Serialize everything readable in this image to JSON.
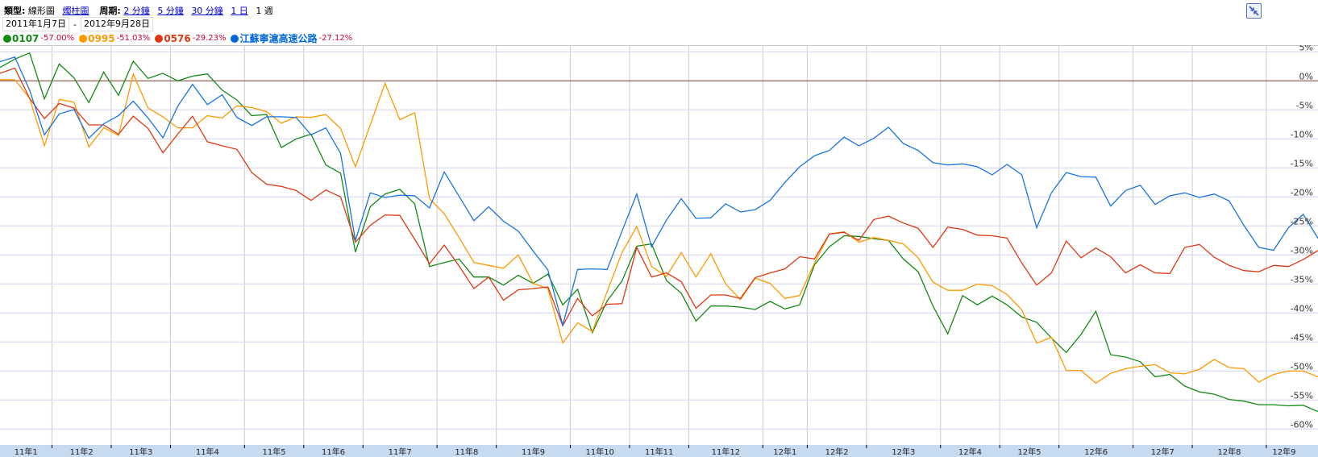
{
  "header": {
    "type_label": "類型:",
    "type_current": "線形圖",
    "type_link": "燭柱圖",
    "period_label": "周期:",
    "period_links": [
      "2 分鐘",
      "5 分鐘",
      "30 分鐘",
      "1 日"
    ],
    "period_current": "1 週",
    "date_from": "2011年1月7日",
    "date_sep": "-",
    "date_to": "2012年9月28日"
  },
  "legend": [
    {
      "name": "0107",
      "change": "-57.00%",
      "color": "#138a13"
    },
    {
      "name": "0995",
      "change": "-51.03%",
      "color": "#ff9900"
    },
    {
      "name": "0576",
      "change": "-29.23%",
      "color": "#dc3912"
    },
    {
      "name": "江蘇寧滬高速公路",
      "change": "-27.12%",
      "color": "#0066dd"
    }
  ],
  "collapse_icon": "collapse-arrows-icon",
  "chart_data": {
    "type": "line",
    "ylim": [
      -62,
      6
    ],
    "y_ticks": [
      "5%",
      "0%",
      "-5%",
      "-10%",
      "-15%",
      "-20%",
      "-25%",
      "-30%",
      "-35%",
      "-40%",
      "-45%",
      "-50%",
      "-55%",
      "-60%"
    ],
    "y_tick_values": [
      5,
      0,
      -5,
      -10,
      -15,
      -20,
      -25,
      -30,
      -35,
      -40,
      -45,
      -50,
      -55,
      -60
    ],
    "x_ticks": [
      "11年1",
      "11年2",
      "11年3",
      "11年4",
      "11年5",
      "11年6",
      "11年7",
      "11年8",
      "11年9",
      "11年10",
      "11年11",
      "11年12",
      "12年1",
      "12年2",
      "12年3",
      "12年4",
      "12年5",
      "12年6",
      "12年7",
      "12年8",
      "12年9"
    ],
    "grid": true,
    "zero_line_color": "#7a3b2e",
    "x": [
      "2011-01-07",
      "2011-01-14",
      "2011-01-21",
      "2011-01-28",
      "2011-02-04",
      "2011-02-11",
      "2011-02-18",
      "2011-02-25",
      "2011-03-04",
      "2011-03-11",
      "2011-03-18",
      "2011-03-25",
      "2011-04-01",
      "2011-04-08",
      "2011-04-15",
      "2011-04-22",
      "2011-04-29",
      "2011-05-06",
      "2011-05-13",
      "2011-05-20",
      "2011-05-27",
      "2011-06-03",
      "2011-06-10",
      "2011-06-17",
      "2011-06-24",
      "2011-07-01",
      "2011-07-08",
      "2011-07-15",
      "2011-07-22",
      "2011-07-29",
      "2011-08-05",
      "2011-08-12",
      "2011-08-19",
      "2011-08-26",
      "2011-09-02",
      "2011-09-09",
      "2011-09-16",
      "2011-09-23",
      "2011-09-30",
      "2011-10-07",
      "2011-10-14",
      "2011-10-21",
      "2011-10-28",
      "2011-11-04",
      "2011-11-11",
      "2011-11-18",
      "2011-11-25",
      "2011-12-02",
      "2011-12-09",
      "2011-12-16",
      "2011-12-23",
      "2011-12-30",
      "2012-01-06",
      "2012-01-13",
      "2012-01-20",
      "2012-02-03",
      "2012-02-10",
      "2012-02-17",
      "2012-02-24",
      "2012-03-02",
      "2012-03-09",
      "2012-03-16",
      "2012-03-23",
      "2012-03-30",
      "2012-04-06",
      "2012-04-13",
      "2012-04-20",
      "2012-04-27",
      "2012-05-04",
      "2012-05-11",
      "2012-05-18",
      "2012-05-25",
      "2012-06-01",
      "2012-06-08",
      "2012-06-15",
      "2012-06-22",
      "2012-06-29",
      "2012-07-06",
      "2012-07-13",
      "2012-07-20",
      "2012-07-27",
      "2012-08-03",
      "2012-08-10",
      "2012-08-17",
      "2012-08-24",
      "2012-08-31",
      "2012-09-07",
      "2012-09-14",
      "2012-09-21",
      "2012-09-28"
    ],
    "series": [
      {
        "name": "0107",
        "color": "#138a13",
        "values": [
          2.3,
          3.75,
          4.8,
          -3.1,
          2.9,
          0.5,
          -3.75,
          1.5,
          -2.5,
          3.4,
          0.4,
          1.3,
          0,
          0.8,
          1.2,
          -1.6,
          -3.3,
          -6.0,
          -5.8,
          -11.5,
          -10.0,
          -9.2,
          -14.5,
          -15.9,
          -29.5,
          -21.7,
          -19.5,
          -18.7,
          -21.2,
          -32.0,
          -31.3,
          -30.7,
          -33.8,
          -33.8,
          -35.2,
          -33.5,
          -34.9,
          -33.3,
          -38.6,
          -35.9,
          -43.4,
          -37.9,
          -34.5,
          -28.5,
          -28.1,
          -34.4,
          -36.6,
          -41.4,
          -38.8,
          -38.8,
          -39.0,
          -39.4,
          -38.0,
          -39.3,
          -38.6,
          -31.7,
          -28.6,
          -26.7,
          -26.8,
          -27.2,
          -27.5,
          -30.7,
          -32.9,
          -38.8,
          -43.6,
          -37.0,
          -38.6,
          -37.1,
          -38.6,
          -40.7,
          -41.6,
          -44.3,
          -46.8,
          -43.7,
          -39.7,
          -47.2,
          -47.6,
          -48.4,
          -51.0,
          -50.6,
          -52.6,
          -53.6,
          -54.0,
          -54.9,
          -55.2,
          -55.8,
          -55.8,
          -56.0,
          -55.9,
          -57.0
        ]
      },
      {
        "name": "0995",
        "color": "#ff9900",
        "values": [
          0.2,
          0.2,
          -3.0,
          -11.2,
          -3.2,
          -3.7,
          -11.4,
          -8.1,
          -9.4,
          1.2,
          -4.7,
          -6.2,
          -8.1,
          -8.1,
          -6.0,
          -6.4,
          -4.3,
          -4.6,
          -5.3,
          -7.3,
          -6.2,
          -6.3,
          -5.8,
          -8.2,
          -14.8,
          -7.6,
          -0.4,
          -6.7,
          -5.5,
          -20.3,
          -22.9,
          -27.0,
          -31.3,
          -31.8,
          -32.3,
          -30.0,
          -34.9,
          -35.8,
          -45.2,
          -41.7,
          -43.2,
          -36.3,
          -29.6,
          -25.1,
          -32.0,
          -33.7,
          -29.6,
          -33.8,
          -29.8,
          -35.0,
          -37.7,
          -34.0,
          -34.9,
          -37.5,
          -37.0,
          -31.4,
          -26.4,
          -26.0,
          -27.8,
          -27.0,
          -27.5,
          -28.1,
          -30.5,
          -34.7,
          -36.1,
          -36.1,
          -35.0,
          -35.3,
          -36.8,
          -39.5,
          -45.2,
          -44.2,
          -49.9,
          -49.9,
          -52.1,
          -50.4,
          -49.6,
          -49.2,
          -48.9,
          -50.3,
          -50.5,
          -49.7,
          -48.0,
          -49.4,
          -49.6,
          -51.9,
          -50.6,
          -50.0,
          -50.0,
          -51.03
        ]
      },
      {
        "name": "0576",
        "color": "#dc3912",
        "values": [
          1.3,
          2.2,
          -3.0,
          -6.5,
          -3.9,
          -4.7,
          -7.6,
          -7.6,
          -9.2,
          -6.1,
          -8.2,
          -12.4,
          -9.2,
          -6.1,
          -10.5,
          -11.2,
          -11.8,
          -15.8,
          -17.8,
          -18.2,
          -18.9,
          -20.6,
          -18.8,
          -20.0,
          -27.8,
          -24.9,
          -23.1,
          -23.2,
          -27.3,
          -31.5,
          -28.3,
          -31.9,
          -35.8,
          -33.8,
          -37.8,
          -36.0,
          -35.8,
          -35.5,
          -42.2,
          -37.5,
          -40.5,
          -38.5,
          -38.4,
          -28.7,
          -33.8,
          -33.1,
          -34.6,
          -39.2,
          -36.9,
          -36.9,
          -37.5,
          -33.9,
          -33.1,
          -32.4,
          -30.3,
          -30.7,
          -26.4,
          -26.1,
          -27.5,
          -23.9,
          -23.3,
          -24.5,
          -25.4,
          -28.7,
          -25.2,
          -25.6,
          -26.6,
          -26.7,
          -27.1,
          -31.4,
          -35.2,
          -33.1,
          -27.6,
          -30.5,
          -28.8,
          -30.3,
          -33.1,
          -31.7,
          -33.1,
          -33.2,
          -28.7,
          -28.2,
          -30.4,
          -31.8,
          -32.7,
          -32.9,
          -31.8,
          -32.0,
          -30.8,
          -29.23
        ]
      },
      {
        "name": "江蘇寧滬高速公路",
        "color": "#1a73e0",
        "values": [
          3.3,
          4.1,
          -1.6,
          -9.3,
          -5.7,
          -4.95,
          -9.9,
          -7.4,
          -6.0,
          -3.5,
          -6.4,
          -9.8,
          -4.4,
          -0.6,
          -4.1,
          -2.4,
          -6.3,
          -7.7,
          -6.2,
          -6.2,
          -6.3,
          -9.3,
          -8.1,
          -12.5,
          -27.5,
          -19.3,
          -20.1,
          -19.7,
          -19.8,
          -21.9,
          -15.7,
          -19.9,
          -24.1,
          -21.7,
          -24.2,
          -25.9,
          -29.3,
          -32.6,
          -42.1,
          -32.5,
          -32.4,
          -32.5,
          -25.9,
          -19.5,
          -28.6,
          -24.0,
          -20.3,
          -23.7,
          -23.6,
          -21.2,
          -22.6,
          -22.2,
          -20.6,
          -17.5,
          -14.8,
          -12.9,
          -12.0,
          -9.7,
          -11.2,
          -9.9,
          -8.0,
          -10.8,
          -12.0,
          -14.1,
          -14.5,
          -14.3,
          -14.8,
          -16.2,
          -14.4,
          -16.2,
          -25.3,
          -19.3,
          -15.8,
          -16.5,
          -16.6,
          -21.6,
          -18.9,
          -18.0,
          -21.3,
          -19.8,
          -19.3,
          -20.1,
          -19.5,
          -20.7,
          -24.9,
          -28.7,
          -29.2,
          -25.3,
          -23.0,
          -27.12
        ]
      }
    ]
  }
}
